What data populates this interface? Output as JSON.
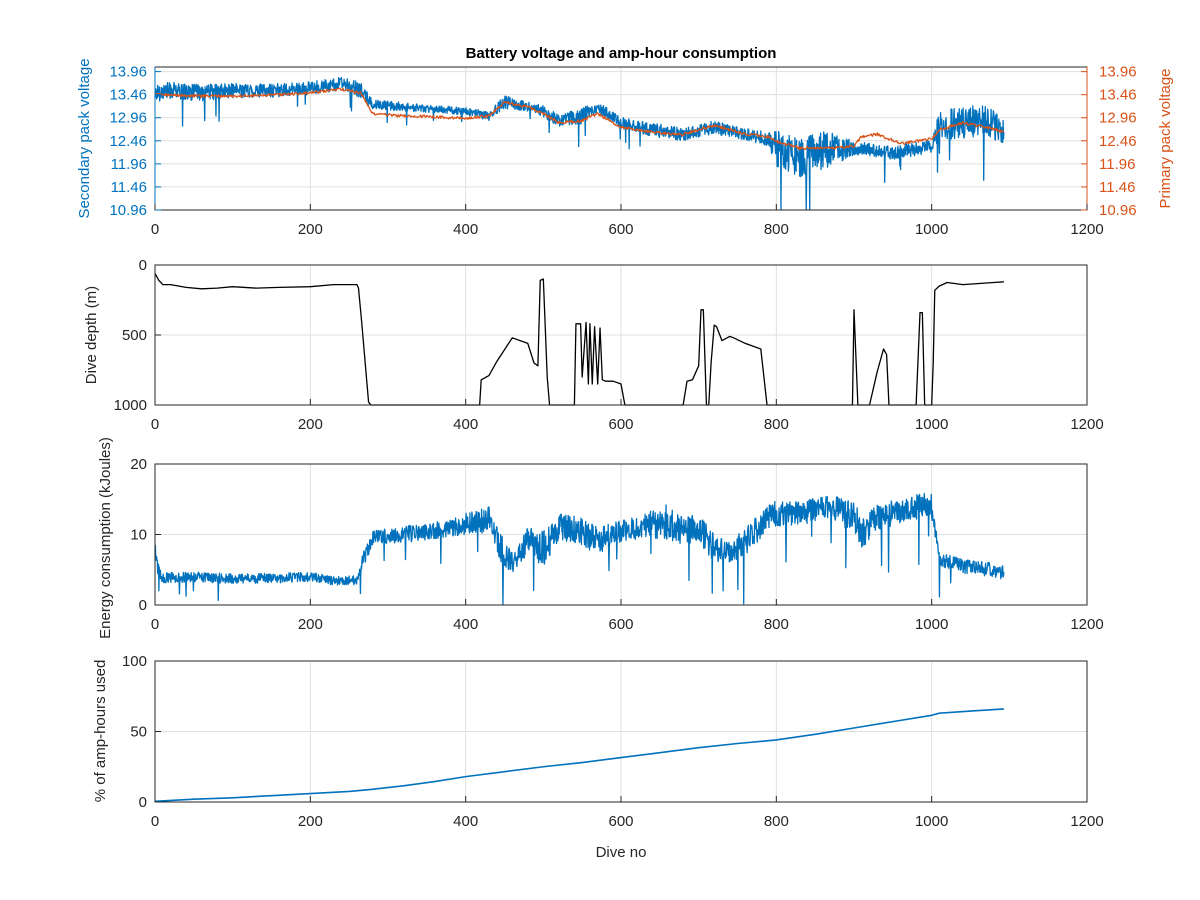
{
  "chart_data": [
    {
      "type": "line",
      "title": "Battery voltage and amp-hour consumption",
      "xlabel": "",
      "ylabel_left": "Secondary pack voltage",
      "ylabel_right": "Primary pack voltage",
      "xlim": [
        0,
        1200
      ],
      "ylim": [
        10.96,
        14.06
      ],
      "xticks": [
        0,
        200,
        400,
        600,
        800,
        1000,
        1200
      ],
      "yticks": [
        10.96,
        11.46,
        11.96,
        12.46,
        12.96,
        13.46,
        13.96
      ],
      "ytick_labels": [
        "10.96",
        "11.46",
        "11.96",
        "12.46",
        "12.96",
        "13.46",
        "13.96"
      ],
      "grid": true,
      "colors": {
        "secondary": "#0072BD",
        "primary": "#D95319"
      },
      "series": [
        {
          "name": "Secondary pack voltage",
          "axis": "left",
          "x": [
            0,
            20,
            60,
            100,
            150,
            200,
            240,
            265,
            280,
            320,
            360,
            400,
            430,
            450,
            480,
            500,
            520,
            550,
            570,
            600,
            640,
            680,
            720,
            760,
            790,
            800,
            830,
            870,
            900,
            950,
            1000,
            1010,
            1040,
            1070,
            1093
          ],
          "y": [
            13.5,
            13.55,
            13.5,
            13.55,
            13.55,
            13.6,
            13.7,
            13.55,
            13.25,
            13.2,
            13.15,
            13.1,
            13.0,
            13.3,
            13.2,
            13.1,
            12.9,
            13.0,
            13.2,
            12.85,
            12.7,
            12.6,
            12.75,
            12.6,
            12.5,
            12.3,
            12.1,
            12.3,
            12.3,
            12.2,
            12.35,
            12.8,
            12.85,
            12.9,
            12.7
          ],
          "spread": [
            0.2,
            0.18,
            0.18,
            0.16,
            0.15,
            0.14,
            0.14,
            0.18,
            0.1,
            0.1,
            0.08,
            0.08,
            0.1,
            0.14,
            0.1,
            0.14,
            0.12,
            0.18,
            0.12,
            0.12,
            0.15,
            0.14,
            0.14,
            0.14,
            0.15,
            0.4,
            0.45,
            0.4,
            0.15,
            0.15,
            0.15,
            0.3,
            0.35,
            0.35,
            0.3
          ]
        },
        {
          "name": "Primary pack voltage",
          "axis": "right",
          "x": [
            0,
            20,
            60,
            100,
            150,
            200,
            240,
            265,
            280,
            320,
            360,
            400,
            430,
            450,
            480,
            500,
            520,
            550,
            570,
            600,
            640,
            680,
            700,
            720,
            760,
            790,
            800,
            830,
            870,
            900,
            910,
            930,
            960,
            1000,
            1010,
            1040,
            1060,
            1080,
            1093
          ],
          "y": [
            13.5,
            13.45,
            13.43,
            13.43,
            13.45,
            13.5,
            13.58,
            13.5,
            13.05,
            13.0,
            12.98,
            12.95,
            13.0,
            13.3,
            13.2,
            13.05,
            12.85,
            12.9,
            13.05,
            12.75,
            12.65,
            12.6,
            12.7,
            12.8,
            12.6,
            12.55,
            12.45,
            12.3,
            12.3,
            12.35,
            12.55,
            12.6,
            12.4,
            12.5,
            12.7,
            12.85,
            12.78,
            12.72,
            12.65
          ]
        }
      ]
    },
    {
      "type": "line",
      "title": "",
      "xlabel": "",
      "ylabel": "Dive depth (m)",
      "xlim": [
        0,
        1200
      ],
      "ylim": [
        0,
        1000
      ],
      "y_reversed": true,
      "xticks": [
        0,
        200,
        400,
        600,
        800,
        1000,
        1200
      ],
      "yticks": [
        0,
        500,
        1000
      ],
      "ytick_labels": [
        "0",
        "500",
        "1000"
      ],
      "grid": true,
      "colors": {
        "line": "#000000"
      },
      "series": [
        {
          "x": [
            0,
            5,
            10,
            20,
            40,
            60,
            80,
            100,
            130,
            160,
            200,
            230,
            260,
            262,
            266,
            275,
            278,
            300,
            350,
            400,
            418,
            420,
            430,
            440,
            460,
            480,
            488,
            493,
            496,
            500,
            505,
            508,
            512,
            515,
            540,
            542,
            548,
            550,
            555,
            558,
            560,
            563,
            566,
            570,
            573,
            576,
            580,
            590,
            600,
            605,
            640,
            680,
            685,
            692,
            700,
            703,
            706,
            710,
            713,
            716,
            720,
            723,
            730,
            740,
            745,
            760,
            780,
            788,
            792,
            800,
            840,
            898,
            900,
            905,
            910,
            912,
            920,
            930,
            938,
            942,
            945,
            948,
            950,
            980,
            985,
            988,
            991,
            993,
            995,
            1000,
            1002,
            1004,
            1010,
            1020,
            1040,
            1080,
            1093
          ],
          "y": [
            60,
            110,
            140,
            140,
            160,
            170,
            165,
            155,
            165,
            160,
            155,
            140,
            140,
            165,
            400,
            980,
            1000,
            1000,
            1000,
            1000,
            1000,
            820,
            790,
            690,
            520,
            560,
            700,
            720,
            110,
            100,
            800,
            1000,
            1000,
            1000,
            1000,
            420,
            420,
            800,
            410,
            850,
            420,
            850,
            440,
            850,
            450,
            820,
            830,
            830,
            850,
            1000,
            1000,
            1000,
            830,
            820,
            720,
            320,
            320,
            1000,
            1000,
            700,
            430,
            440,
            540,
            510,
            520,
            560,
            600,
            1000,
            1000,
            1000,
            1000,
            1000,
            320,
            1000,
            1000,
            1000,
            1000,
            760,
            600,
            640,
            1000,
            1000,
            1000,
            1000,
            340,
            340,
            1000,
            1000,
            1000,
            1000,
            700,
            180,
            150,
            125,
            140,
            125,
            120
          ]
        }
      ]
    },
    {
      "type": "line",
      "title": "",
      "xlabel": "",
      "ylabel": "Energy consumption (kJoules)",
      "xlim": [
        0,
        1200
      ],
      "ylim": [
        0,
        20
      ],
      "xticks": [
        0,
        200,
        400,
        600,
        800,
        1000,
        1200
      ],
      "yticks": [
        0,
        10,
        20
      ],
      "ytick_labels": [
        "0",
        "10",
        "20"
      ],
      "grid": true,
      "colors": {
        "line": "#0072BD"
      },
      "series": [
        {
          "x": [
            0,
            4,
            8,
            15,
            50,
            100,
            150,
            200,
            230,
            260,
            270,
            280,
            320,
            360,
            400,
            430,
            450,
            460,
            480,
            500,
            520,
            550,
            570,
            600,
            640,
            660,
            680,
            700,
            720,
            740,
            760,
            790,
            800,
            830,
            870,
            900,
            910,
            930,
            950,
            980,
            1000,
            1010,
            1040,
            1080,
            1093
          ],
          "y": [
            8,
            5,
            4,
            3.8,
            4,
            3.7,
            3.8,
            4,
            3.4,
            3.5,
            7,
            9.5,
            10,
            10.5,
            11.5,
            12,
            7,
            6,
            9,
            8,
            11,
            10.5,
            9,
            10.5,
            11.5,
            11.8,
            10.5,
            11,
            8,
            7.5,
            9,
            12.5,
            13,
            13,
            14,
            12.5,
            10,
            12.5,
            13,
            14,
            14,
            6.5,
            5.5,
            5,
            4.5
          ],
          "spread": [
            1,
            1,
            0.8,
            0.8,
            0.7,
            0.7,
            0.7,
            0.7,
            0.6,
            0.7,
            1.2,
            1.0,
            1.2,
            1.2,
            1.5,
            2.0,
            2.0,
            1.5,
            2.0,
            2.5,
            2.0,
            2.0,
            2.0,
            1.5,
            2.0,
            2.5,
            2.0,
            2.0,
            2.0,
            1.5,
            2.0,
            1.8,
            1.8,
            1.8,
            1.5,
            2.5,
            2.0,
            2.0,
            1.8,
            1.8,
            2.0,
            1.2,
            1.0,
            1.0,
            1.0
          ]
        }
      ]
    },
    {
      "type": "line",
      "title": "",
      "xlabel": "Dive no",
      "ylabel": "% of amp-hours used",
      "xlim": [
        0,
        1200
      ],
      "ylim": [
        0,
        100
      ],
      "xticks": [
        0,
        200,
        400,
        600,
        800,
        1000,
        1200
      ],
      "yticks": [
        0,
        50,
        100
      ],
      "ytick_labels": [
        "0",
        "50",
        "100"
      ],
      "grid": true,
      "colors": {
        "line": "#0072BD"
      },
      "series": [
        {
          "x": [
            0,
            50,
            100,
            150,
            200,
            250,
            280,
            320,
            360,
            400,
            450,
            500,
            550,
            600,
            650,
            700,
            750,
            800,
            850,
            900,
            950,
            1000,
            1010,
            1050,
            1093
          ],
          "y": [
            0.5,
            2,
            3,
            4.5,
            6,
            7.5,
            9,
            11.5,
            14.5,
            18,
            21.5,
            25,
            28,
            31.5,
            35,
            38.5,
            41.5,
            44,
            48,
            52.5,
            57,
            61.5,
            63,
            64.5,
            66
          ]
        }
      ]
    }
  ]
}
